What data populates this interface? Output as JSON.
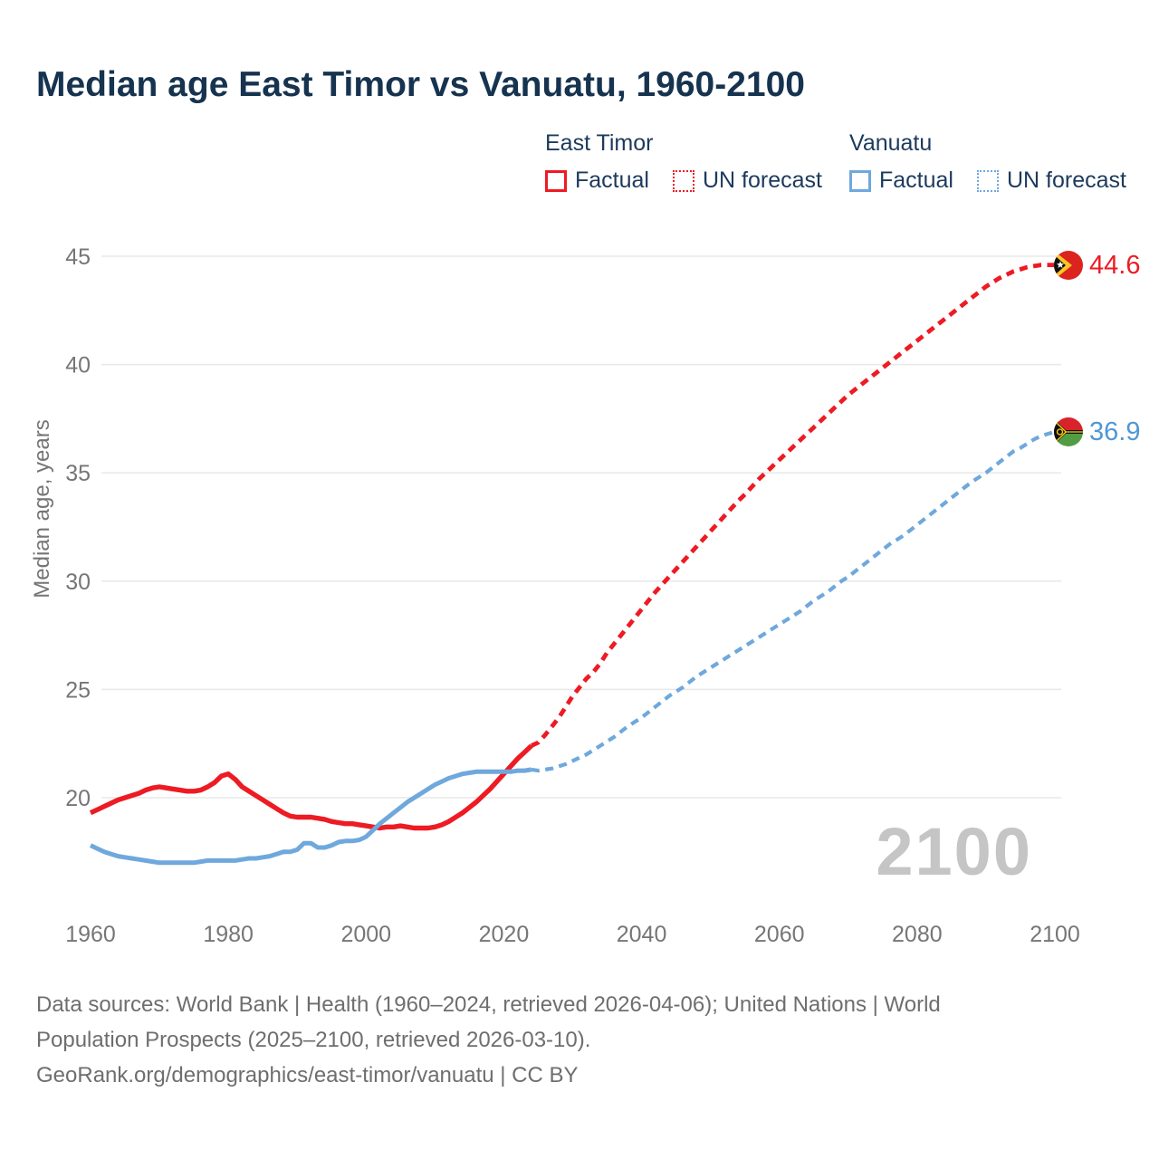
{
  "header": {
    "title": "Median age East Timor vs Vanuatu, 1960-2100"
  },
  "legend": {
    "groups": [
      {
        "title": "East Timor",
        "color": "#ed1b23",
        "items": [
          {
            "label": "Factual",
            "style": "solid"
          },
          {
            "label": "UN forecast",
            "style": "dotted"
          }
        ]
      },
      {
        "title": "Vanuatu",
        "color": "#6fa8dc",
        "items": [
          {
            "label": "Factual",
            "style": "solid"
          },
          {
            "label": "UN forecast",
            "style": "dotted"
          }
        ]
      }
    ]
  },
  "chart_data": {
    "type": "line",
    "title": "Median age East Timor vs Vanuatu, 1960-2100",
    "xlabel": "",
    "ylabel": "Median age, years",
    "xlim": [
      1960,
      2100
    ],
    "ylim_displayed": [
      20,
      45
    ],
    "x_ticks": [
      "1960",
      "1980",
      "2000",
      "2020",
      "2040",
      "2060",
      "2080",
      "2100"
    ],
    "x_tick_years": [
      1960,
      1980,
      2000,
      2020,
      2040,
      2060,
      2080,
      2100
    ],
    "y_ticks": [
      20,
      25,
      30,
      35,
      40,
      45
    ],
    "grid": "horizontal",
    "legend_position": "top-right",
    "watermark": "2100",
    "series": [
      {
        "name": "East Timor — Factual",
        "color": "#ed1b23",
        "style": "solid",
        "width": 5.4,
        "points": [
          [
            1960,
            19.3
          ],
          [
            1961,
            19.45
          ],
          [
            1962,
            19.6
          ],
          [
            1963,
            19.75
          ],
          [
            1964,
            19.9
          ],
          [
            1965,
            20.0
          ],
          [
            1966,
            20.1
          ],
          [
            1967,
            20.2
          ],
          [
            1968,
            20.35
          ],
          [
            1969,
            20.45
          ],
          [
            1970,
            20.5
          ],
          [
            1971,
            20.45
          ],
          [
            1972,
            20.4
          ],
          [
            1973,
            20.35
          ],
          [
            1974,
            20.3
          ],
          [
            1975,
            20.3
          ],
          [
            1976,
            20.35
          ],
          [
            1977,
            20.5
          ],
          [
            1978,
            20.7
          ],
          [
            1979,
            21.0
          ],
          [
            1980,
            21.1
          ],
          [
            1981,
            20.85
          ],
          [
            1982,
            20.5
          ],
          [
            1983,
            20.3
          ],
          [
            1984,
            20.1
          ],
          [
            1985,
            19.9
          ],
          [
            1986,
            19.7
          ],
          [
            1987,
            19.5
          ],
          [
            1988,
            19.3
          ],
          [
            1989,
            19.15
          ],
          [
            1990,
            19.1
          ],
          [
            1991,
            19.1
          ],
          [
            1992,
            19.1
          ],
          [
            1993,
            19.05
          ],
          [
            1994,
            19.0
          ],
          [
            1995,
            18.9
          ],
          [
            1996,
            18.85
          ],
          [
            1997,
            18.8
          ],
          [
            1998,
            18.8
          ],
          [
            1999,
            18.75
          ],
          [
            2000,
            18.7
          ],
          [
            2001,
            18.65
          ],
          [
            2002,
            18.6
          ],
          [
            2003,
            18.65
          ],
          [
            2004,
            18.65
          ],
          [
            2005,
            18.7
          ],
          [
            2006,
            18.65
          ],
          [
            2007,
            18.6
          ],
          [
            2008,
            18.6
          ],
          [
            2009,
            18.6
          ],
          [
            2010,
            18.65
          ],
          [
            2011,
            18.75
          ],
          [
            2012,
            18.9
          ],
          [
            2013,
            19.1
          ],
          [
            2014,
            19.3
          ],
          [
            2015,
            19.55
          ],
          [
            2016,
            19.8
          ],
          [
            2017,
            20.1
          ],
          [
            2018,
            20.4
          ],
          [
            2019,
            20.75
          ],
          [
            2020,
            21.1
          ],
          [
            2021,
            21.45
          ],
          [
            2022,
            21.8
          ],
          [
            2023,
            22.1
          ],
          [
            2024,
            22.4
          ]
        ]
      },
      {
        "name": "East Timor — UN forecast",
        "color": "#ed1b23",
        "style": "dashed",
        "width": 4.8,
        "end_label": "44.6",
        "end_flag": "east-timor",
        "points": [
          [
            2024,
            22.4
          ],
          [
            2025,
            22.55
          ],
          [
            2026,
            22.9
          ],
          [
            2027,
            23.3
          ],
          [
            2028,
            23.7
          ],
          [
            2029,
            24.2
          ],
          [
            2030,
            24.7
          ],
          [
            2031,
            25.1
          ],
          [
            2032,
            25.5
          ],
          [
            2033,
            25.8
          ],
          [
            2034,
            26.2
          ],
          [
            2035,
            26.7
          ],
          [
            2036,
            27.1
          ],
          [
            2037,
            27.5
          ],
          [
            2038,
            27.9
          ],
          [
            2039,
            28.3
          ],
          [
            2040,
            28.7
          ],
          [
            2041,
            29.1
          ],
          [
            2042,
            29.5
          ],
          [
            2043,
            29.85
          ],
          [
            2044,
            30.2
          ],
          [
            2045,
            30.55
          ],
          [
            2046,
            30.9
          ],
          [
            2047,
            31.25
          ],
          [
            2048,
            31.6
          ],
          [
            2049,
            31.95
          ],
          [
            2050,
            32.3
          ],
          [
            2051,
            32.65
          ],
          [
            2052,
            33.0
          ],
          [
            2053,
            33.35
          ],
          [
            2054,
            33.7
          ],
          [
            2055,
            34.0
          ],
          [
            2056,
            34.35
          ],
          [
            2057,
            34.7
          ],
          [
            2058,
            35.0
          ],
          [
            2059,
            35.3
          ],
          [
            2060,
            35.6
          ],
          [
            2061,
            35.9
          ],
          [
            2062,
            36.2
          ],
          [
            2063,
            36.5
          ],
          [
            2064,
            36.8
          ],
          [
            2065,
            37.1
          ],
          [
            2066,
            37.4
          ],
          [
            2067,
            37.7
          ],
          [
            2068,
            38.0
          ],
          [
            2069,
            38.3
          ],
          [
            2070,
            38.6
          ],
          [
            2071,
            38.85
          ],
          [
            2072,
            39.1
          ],
          [
            2073,
            39.35
          ],
          [
            2074,
            39.6
          ],
          [
            2075,
            39.85
          ],
          [
            2076,
            40.1
          ],
          [
            2077,
            40.35
          ],
          [
            2078,
            40.6
          ],
          [
            2079,
            40.85
          ],
          [
            2080,
            41.1
          ],
          [
            2081,
            41.35
          ],
          [
            2082,
            41.6
          ],
          [
            2083,
            41.85
          ],
          [
            2084,
            42.1
          ],
          [
            2085,
            42.35
          ],
          [
            2086,
            42.6
          ],
          [
            2087,
            42.85
          ],
          [
            2088,
            43.1
          ],
          [
            2089,
            43.35
          ],
          [
            2090,
            43.6
          ],
          [
            2091,
            43.8
          ],
          [
            2092,
            44.0
          ],
          [
            2093,
            44.15
          ],
          [
            2094,
            44.3
          ],
          [
            2095,
            44.4
          ],
          [
            2096,
            44.5
          ],
          [
            2097,
            44.55
          ],
          [
            2098,
            44.6
          ],
          [
            2099,
            44.6
          ],
          [
            2100,
            44.6
          ]
        ]
      },
      {
        "name": "Vanuatu — Factual",
        "color": "#6fa8dc",
        "style": "solid",
        "width": 5.0,
        "points": [
          [
            1960,
            17.8
          ],
          [
            1961,
            17.65
          ],
          [
            1962,
            17.5
          ],
          [
            1963,
            17.4
          ],
          [
            1964,
            17.3
          ],
          [
            1965,
            17.25
          ],
          [
            1966,
            17.2
          ],
          [
            1967,
            17.15
          ],
          [
            1968,
            17.1
          ],
          [
            1969,
            17.05
          ],
          [
            1970,
            17.0
          ],
          [
            1971,
            17.0
          ],
          [
            1972,
            17.0
          ],
          [
            1973,
            17.0
          ],
          [
            1974,
            17.0
          ],
          [
            1975,
            17.0
          ],
          [
            1976,
            17.05
          ],
          [
            1977,
            17.1
          ],
          [
            1978,
            17.1
          ],
          [
            1979,
            17.1
          ],
          [
            1980,
            17.1
          ],
          [
            1981,
            17.1
          ],
          [
            1982,
            17.15
          ],
          [
            1983,
            17.2
          ],
          [
            1984,
            17.2
          ],
          [
            1985,
            17.25
          ],
          [
            1986,
            17.3
          ],
          [
            1987,
            17.4
          ],
          [
            1988,
            17.5
          ],
          [
            1989,
            17.5
          ],
          [
            1990,
            17.6
          ],
          [
            1991,
            17.9
          ],
          [
            1992,
            17.9
          ],
          [
            1993,
            17.7
          ],
          [
            1994,
            17.7
          ],
          [
            1995,
            17.8
          ],
          [
            1996,
            17.95
          ],
          [
            1997,
            18.0
          ],
          [
            1998,
            18.0
          ],
          [
            1999,
            18.05
          ],
          [
            2000,
            18.2
          ],
          [
            2001,
            18.5
          ],
          [
            2002,
            18.8
          ],
          [
            2003,
            19.05
          ],
          [
            2004,
            19.3
          ],
          [
            2005,
            19.55
          ],
          [
            2006,
            19.8
          ],
          [
            2007,
            20.0
          ],
          [
            2008,
            20.2
          ],
          [
            2009,
            20.4
          ],
          [
            2010,
            20.6
          ],
          [
            2011,
            20.75
          ],
          [
            2012,
            20.9
          ],
          [
            2013,
            21.0
          ],
          [
            2014,
            21.1
          ],
          [
            2015,
            21.15
          ],
          [
            2016,
            21.2
          ],
          [
            2017,
            21.2
          ],
          [
            2018,
            21.2
          ],
          [
            2019,
            21.2
          ],
          [
            2020,
            21.2
          ],
          [
            2021,
            21.2
          ],
          [
            2022,
            21.25
          ],
          [
            2023,
            21.25
          ],
          [
            2024,
            21.3
          ]
        ]
      },
      {
        "name": "Vanuatu — UN forecast",
        "color": "#6fa8dc",
        "style": "dashed",
        "width": 4.2,
        "end_label": "36.9",
        "end_flag": "vanuatu",
        "points": [
          [
            2024,
            21.3
          ],
          [
            2025,
            21.25
          ],
          [
            2026,
            21.3
          ],
          [
            2027,
            21.35
          ],
          [
            2028,
            21.45
          ],
          [
            2029,
            21.55
          ],
          [
            2030,
            21.7
          ],
          [
            2031,
            21.85
          ],
          [
            2032,
            22.0
          ],
          [
            2033,
            22.2
          ],
          [
            2034,
            22.4
          ],
          [
            2035,
            22.6
          ],
          [
            2036,
            22.8
          ],
          [
            2037,
            23.05
          ],
          [
            2038,
            23.3
          ],
          [
            2039,
            23.5
          ],
          [
            2040,
            23.7
          ],
          [
            2041,
            23.95
          ],
          [
            2042,
            24.2
          ],
          [
            2043,
            24.45
          ],
          [
            2044,
            24.7
          ],
          [
            2045,
            24.9
          ],
          [
            2046,
            25.1
          ],
          [
            2047,
            25.35
          ],
          [
            2048,
            25.6
          ],
          [
            2049,
            25.8
          ],
          [
            2050,
            26.0
          ],
          [
            2051,
            26.2
          ],
          [
            2052,
            26.4
          ],
          [
            2053,
            26.6
          ],
          [
            2054,
            26.8
          ],
          [
            2055,
            27.0
          ],
          [
            2056,
            27.2
          ],
          [
            2057,
            27.4
          ],
          [
            2058,
            27.6
          ],
          [
            2059,
            27.8
          ],
          [
            2060,
            28.0
          ],
          [
            2061,
            28.2
          ],
          [
            2062,
            28.4
          ],
          [
            2063,
            28.6
          ],
          [
            2064,
            28.85
          ],
          [
            2065,
            29.1
          ],
          [
            2066,
            29.3
          ],
          [
            2067,
            29.5
          ],
          [
            2068,
            29.75
          ],
          [
            2069,
            30.0
          ],
          [
            2070,
            30.2
          ],
          [
            2071,
            30.45
          ],
          [
            2072,
            30.7
          ],
          [
            2073,
            30.95
          ],
          [
            2074,
            31.2
          ],
          [
            2075,
            31.45
          ],
          [
            2076,
            31.7
          ],
          [
            2077,
            31.9
          ],
          [
            2078,
            32.1
          ],
          [
            2079,
            32.35
          ],
          [
            2080,
            32.6
          ],
          [
            2081,
            32.85
          ],
          [
            2082,
            33.1
          ],
          [
            2083,
            33.35
          ],
          [
            2084,
            33.6
          ],
          [
            2085,
            33.85
          ],
          [
            2086,
            34.1
          ],
          [
            2087,
            34.35
          ],
          [
            2088,
            34.6
          ],
          [
            2089,
            34.8
          ],
          [
            2090,
            35.0
          ],
          [
            2091,
            35.25
          ],
          [
            2092,
            35.5
          ],
          [
            2093,
            35.75
          ],
          [
            2094,
            36.0
          ],
          [
            2095,
            36.15
          ],
          [
            2096,
            36.35
          ],
          [
            2097,
            36.55
          ],
          [
            2098,
            36.7
          ],
          [
            2099,
            36.8
          ],
          [
            2100,
            36.9
          ]
        ]
      }
    ]
  },
  "footer": {
    "lines": [
      "Data sources: World Bank | Health (1960–2024, retrieved 2026-04-06); United Nations | World",
      "Population Prospects (2025–2100, retrieved 2026-03-10).",
      "GeoRank.org/demographics/east-timor/vanuatu | CC BY"
    ]
  }
}
